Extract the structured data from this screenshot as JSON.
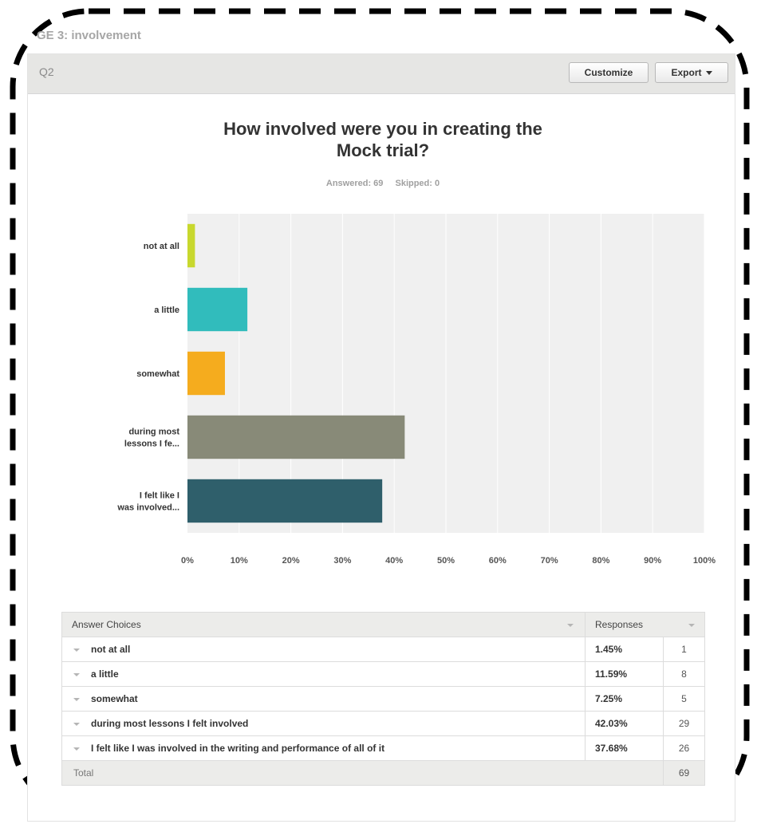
{
  "page": {
    "label": "GE 3: involvement"
  },
  "question": {
    "label": "Q2",
    "buttons": {
      "customize": "Customize",
      "export": "Export"
    },
    "title_line1": "How involved were you in creating the",
    "title_line2": "Mock trial?",
    "answered": "Answered: 69",
    "skipped": "Skipped: 0"
  },
  "chart_data": {
    "type": "bar",
    "orientation": "horizontal",
    "categories": [
      "not at all",
      "a little",
      "somewhat",
      "during most lessons I fe...",
      "I felt like I was involved..."
    ],
    "category_lines": [
      [
        "not at all"
      ],
      [
        "a little"
      ],
      [
        "somewhat"
      ],
      [
        "during most",
        "lessons I fe..."
      ],
      [
        "I felt like I",
        "was involved..."
      ]
    ],
    "values": [
      1.45,
      11.59,
      7.25,
      42.03,
      37.68
    ],
    "colors": [
      "#c8d82e",
      "#31bcbc",
      "#f5ac1e",
      "#888a78",
      "#2f5f6b"
    ],
    "xlim": [
      0,
      100
    ],
    "xticks": [
      "0%",
      "10%",
      "20%",
      "30%",
      "40%",
      "50%",
      "60%",
      "70%",
      "80%",
      "90%",
      "100%"
    ],
    "grid": true,
    "background": "#f0f0f0"
  },
  "table": {
    "headers": {
      "answer": "Answer Choices",
      "responses": "Responses"
    },
    "rows": [
      {
        "answer": "not at all",
        "percent": "1.45%",
        "count": "1"
      },
      {
        "answer": "a little",
        "percent": "11.59%",
        "count": "8"
      },
      {
        "answer": "somewhat",
        "percent": "7.25%",
        "count": "5"
      },
      {
        "answer": "during most lessons I felt involved",
        "percent": "42.03%",
        "count": "29"
      },
      {
        "answer": "I felt like I was involved in the writing and performance of all of it",
        "percent": "37.68%",
        "count": "26"
      }
    ],
    "total": {
      "label": "Total",
      "count": "69"
    }
  }
}
